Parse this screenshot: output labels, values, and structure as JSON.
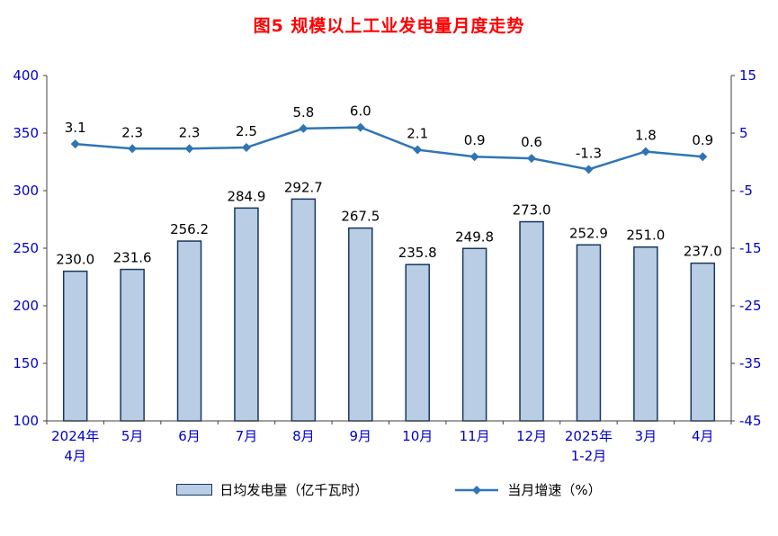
{
  "title": "图5 规模以上工业发电量月度走势",
  "chart_data": {
    "type": "bar+line",
    "title": "图5 规模以上工业发电量月度走势",
    "categories": [
      [
        "2024年",
        "4月"
      ],
      [
        "5月"
      ],
      [
        "6月"
      ],
      [
        "7月"
      ],
      [
        "8月"
      ],
      [
        "9月"
      ],
      [
        "10月"
      ],
      [
        "11月"
      ],
      [
        "12月"
      ],
      [
        "2025年",
        "1-2月"
      ],
      [
        "3月"
      ],
      [
        "4月"
      ]
    ],
    "series": [
      {
        "name": "日均发电量（亿千瓦时）",
        "type": "bar",
        "axis": "left",
        "values": [
          230.0,
          231.6,
          256.2,
          284.9,
          292.7,
          267.5,
          235.8,
          249.8,
          273.0,
          252.9,
          251.0,
          237.0
        ]
      },
      {
        "name": "当月增速（%）",
        "type": "line",
        "axis": "right",
        "values": [
          3.1,
          2.3,
          2.3,
          2.5,
          5.8,
          6.0,
          2.1,
          0.9,
          0.6,
          -1.3,
          1.8,
          0.9
        ]
      }
    ],
    "left_axis": {
      "min": 100,
      "max": 400,
      "ticks": [
        100,
        150,
        200,
        250,
        300,
        350,
        400
      ]
    },
    "right_axis": {
      "min": -45,
      "max": 15,
      "ticks": [
        -45,
        -35,
        -25,
        -15,
        -5,
        5,
        15
      ]
    },
    "grid": false,
    "legend_position": "bottom",
    "colors": {
      "title": "#FF0000",
      "axis_text": "#0000CC",
      "axis_line": "#404040",
      "bar_fill": "#B9CDE5",
      "bar_border": "#17375E",
      "line": "#2E75B6",
      "label_text": "#000000"
    }
  },
  "legend": [
    {
      "label": "日均发电量（亿千瓦时）",
      "type": "bar-swatch"
    },
    {
      "label": "当月增速（%）",
      "type": "line-swatch"
    }
  ]
}
